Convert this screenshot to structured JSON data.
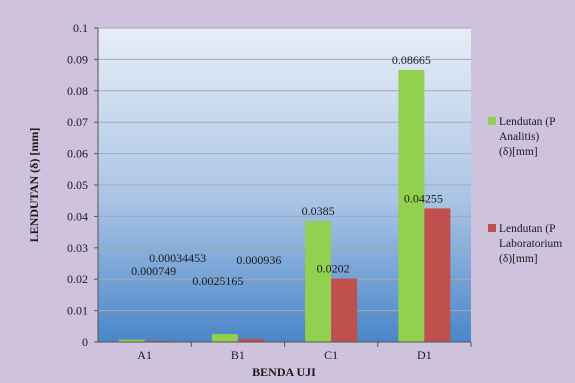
{
  "chart_data": {
    "type": "bar",
    "categories": [
      "A1",
      "B1",
      "C1",
      "D1"
    ],
    "series": [
      {
        "name": "Lendutan (P Analitis) (δ)[mm]",
        "legend_lines": [
          "Lendutan (P",
          "Analitis)",
          "(δ)[mm]"
        ],
        "color": "#92d050",
        "values": [
          0.000749,
          0.0025165,
          0.0385,
          0.08665
        ],
        "labels": [
          "0.000749",
          "0.0025165",
          "0.0385",
          "0.08665"
        ]
      },
      {
        "name": "Lendutan (P Laboratorium) (δ)[mm]",
        "legend_lines": [
          "Lendutan (P",
          "Laboratorium",
          "(δ)[mm]"
        ],
        "color": "#c0504d",
        "values": [
          0.00034453,
          0.000936,
          0.0202,
          0.04255
        ],
        "labels": [
          "0.00034453",
          "0.000936",
          "0.0202",
          "0.04255"
        ]
      }
    ],
    "xlabel": "BENDA UJI",
    "ylabel": "LENDUTAN (δ) [mm]",
    "ylim": [
      0,
      0.1
    ],
    "yticks": [
      0,
      0.01,
      0.02,
      0.03,
      0.04,
      0.05,
      0.06,
      0.07,
      0.08,
      0.09,
      0.1
    ],
    "ytick_labels": [
      "0",
      "0.01",
      "0.02",
      "0.03",
      "0.04",
      "0.05",
      "0.06",
      "0.07",
      "0.08",
      "0.09",
      "0.1"
    ],
    "grid": true,
    "legend_position": "right",
    "colors": {
      "background": "#cfc2dc",
      "plot_top": "#e8eef7",
      "plot_bottom": "#4a86c8",
      "grid": "#a8a8b0"
    }
  }
}
